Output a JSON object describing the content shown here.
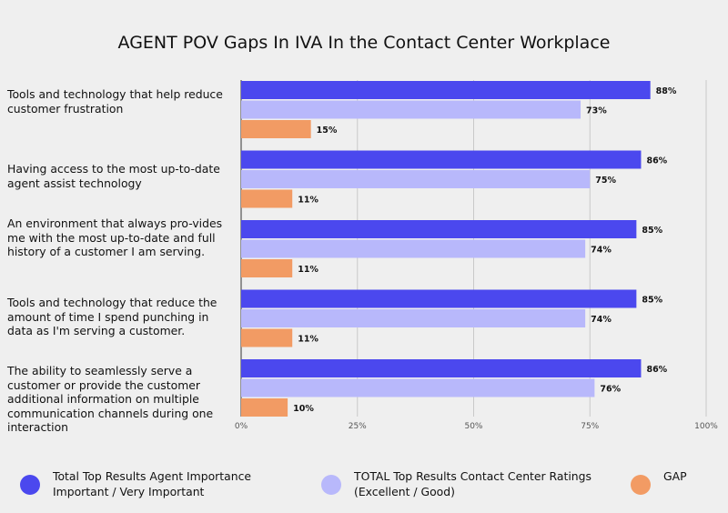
{
  "chart_data": {
    "type": "bar",
    "orientation": "horizontal",
    "title": "AGENT POV Gaps In IVA In the Contact Center Workplace",
    "categories": [
      "Tools and technology that help reduce customer frustration",
      "Having access to the most up-to-date agent assist technology",
      "An environment that always pro-vides me with the most up-to-date and full history of a customer I am serving.",
      "Tools and technology that reduce the amount of time I spend punching in data as I'm serving a customer.",
      "The ability to seamlessly serve a customer or provide the customer additional information on multiple communication channels during one interaction"
    ],
    "series": [
      {
        "name": "Total Top Results Agent Importance Important / Very Important",
        "color": "#4b48ee",
        "values": [
          88,
          86,
          85,
          85,
          86
        ]
      },
      {
        "name": "TOTAL Top Results Contact Center Ratings (Excellent / Good)",
        "color": "#b8b8fb",
        "values": [
          73,
          75,
          74,
          74,
          76
        ]
      },
      {
        "name": "GAP",
        "color": "#f29b64",
        "values": [
          15,
          11,
          11,
          11,
          10
        ]
      }
    ],
    "value_suffix": "%",
    "xlim": [
      0,
      100
    ],
    "xticks": [
      "0%",
      "25%",
      "50%",
      "75%",
      "100%"
    ],
    "grid": true,
    "legend_position": "bottom"
  },
  "legend": {
    "items": [
      {
        "line1": "Total Top Results Agent Importance",
        "line2": "Important / Very Important",
        "color": "#4b48ee"
      },
      {
        "line1": "TOTAL Top Results Contact Center Ratings",
        "line2": "(Excellent / Good)",
        "color": "#b8b8fb"
      },
      {
        "line1": "GAP",
        "line2": "",
        "color": "#f29b64"
      }
    ]
  }
}
